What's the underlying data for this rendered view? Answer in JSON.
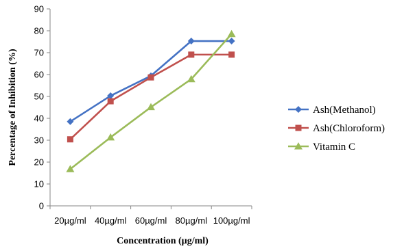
{
  "chart_data": {
    "type": "line",
    "title": "",
    "xlabel": "Concentration (µg/ml)",
    "ylabel": "Percentage of Inhibition (%)",
    "categories": [
      "20µg/ml",
      "40µg/ml",
      "60µg/ml",
      "80µg/ml",
      "100µg/ml"
    ],
    "ylim": [
      0,
      90
    ],
    "yticks": [
      0,
      10,
      20,
      30,
      40,
      50,
      60,
      70,
      80,
      90
    ],
    "grid": false,
    "legend_position": "right",
    "series": [
      {
        "name": "Ash(Methanol)",
        "color": "#4472C4",
        "marker": "diamond",
        "values": [
          38.5,
          50.3,
          59.4,
          75.3,
          75.3
        ]
      },
      {
        "name": "Ash(Chloroform)",
        "color": "#C0504D",
        "marker": "square",
        "values": [
          30.4,
          47.8,
          58.7,
          69.1,
          69.1
        ]
      },
      {
        "name": "Vitamin C",
        "color": "#9BBB59",
        "marker": "triangle",
        "values": [
          16.8,
          31.3,
          45.1,
          57.9,
          78.5
        ]
      }
    ]
  }
}
